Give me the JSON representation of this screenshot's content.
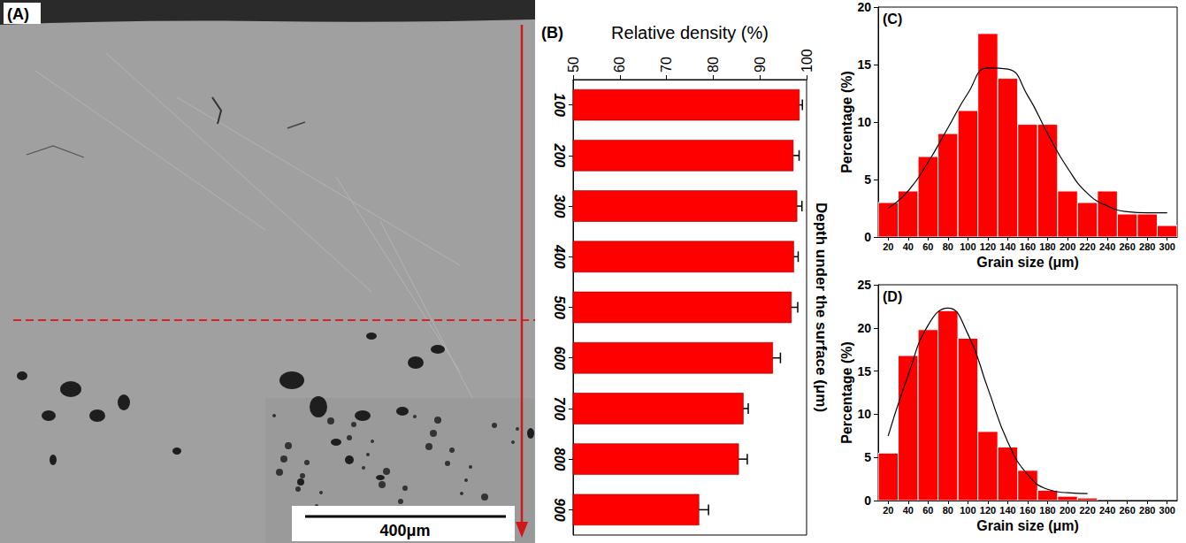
{
  "image": {
    "panel": "(A)",
    "scale_bar": "400μm"
  },
  "chart_data": [
    {
      "panel": "(B)",
      "type": "bar",
      "orientation": "horizontal",
      "xlabel": "Relative density (%)",
      "ylabel": "Depth under the surface (μm)",
      "categories": [
        "100",
        "200",
        "300",
        "400",
        "500",
        "600",
        "700",
        "800",
        "900"
      ],
      "values": [
        98.5,
        97.2,
        98.0,
        97.3,
        96.8,
        92.8,
        86.5,
        85.5,
        77.0
      ],
      "errors": [
        0.6,
        1.2,
        1.0,
        0.9,
        1.3,
        1.6,
        1.0,
        1.8,
        2.0
      ],
      "color": "#ff0000",
      "xlim": [
        50,
        100
      ],
      "xticks": [
        50,
        60,
        70,
        80,
        90,
        100
      ],
      "grid": false
    },
    {
      "panel": "(C)",
      "type": "histogram",
      "xlabel": "Grain size (μm)",
      "ylabel": "Percentage (%)",
      "bins": [
        10,
        30,
        50,
        70,
        90,
        110,
        130,
        150,
        170,
        190,
        210,
        230,
        250,
        270,
        290,
        310
      ],
      "values": [
        3,
        4,
        7,
        9,
        11,
        17.7,
        13.8,
        9.8,
        9.8,
        4,
        3,
        4,
        2,
        2,
        1
      ],
      "fit": {
        "x": [
          20,
          40,
          60,
          80,
          100,
          120,
          140,
          160,
          180,
          200,
          220,
          240,
          260,
          280,
          300
        ],
        "values": [
          2.5,
          4,
          6.5,
          9.5,
          12.5,
          14.7,
          14.6,
          12.3,
          9,
          6,
          3.8,
          2.7,
          2.2,
          2.1,
          2.1
        ],
        "color": "#000000"
      },
      "color": "#ff0000",
      "xlim": [
        10,
        310
      ],
      "xticks": [
        20,
        40,
        60,
        80,
        100,
        120,
        140,
        160,
        180,
        200,
        220,
        240,
        260,
        280,
        300
      ],
      "ylim": [
        0,
        20
      ],
      "yticks": [
        0,
        5,
        10,
        15,
        20
      ],
      "grid": false
    },
    {
      "panel": "(D)",
      "type": "histogram",
      "xlabel": "Grain size (μm)",
      "ylabel": "Percentage (%)",
      "bins": [
        10,
        30,
        50,
        70,
        90,
        110,
        130,
        150,
        170,
        190,
        210,
        230
      ],
      "values": [
        5.5,
        16.8,
        19.8,
        22,
        18.8,
        8,
        6.2,
        3.5,
        1.2,
        0.5,
        0.3
      ],
      "fit": {
        "x": [
          20,
          40,
          60,
          80,
          100,
          120,
          140,
          160,
          180,
          200,
          220
        ],
        "values": [
          7.5,
          14.5,
          20.3,
          22.3,
          19.3,
          13,
          6.8,
          3,
          1.3,
          0.9,
          0.8
        ],
        "color": "#000000"
      },
      "color": "#ff0000",
      "xlim": [
        10,
        310
      ],
      "xticks": [
        20,
        40,
        60,
        80,
        100,
        120,
        140,
        160,
        180,
        200,
        220,
        240,
        260,
        280,
        300
      ],
      "ylim": [
        0,
        25
      ],
      "yticks": [
        0,
        5,
        10,
        15,
        20,
        25
      ],
      "grid": false
    }
  ]
}
